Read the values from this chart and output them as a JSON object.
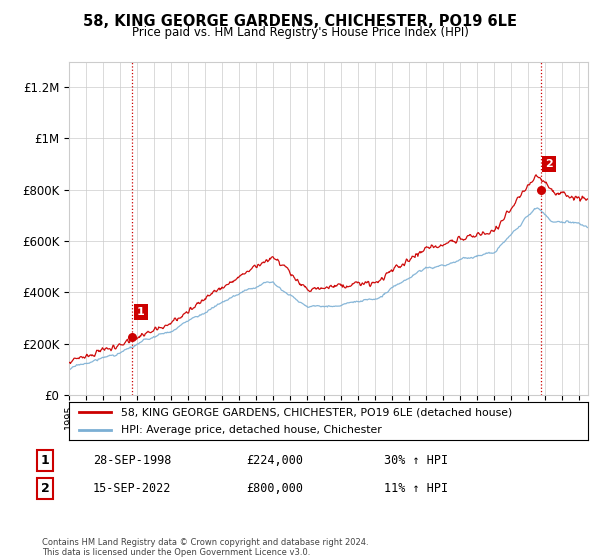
{
  "title": "58, KING GEORGE GARDENS, CHICHESTER, PO19 6LE",
  "subtitle": "Price paid vs. HM Land Registry's House Price Index (HPI)",
  "ylabel_ticks": [
    "£0",
    "£200K",
    "£400K",
    "£600K",
    "£800K",
    "£1M",
    "£1.2M"
  ],
  "ytick_values": [
    0,
    200000,
    400000,
    600000,
    800000,
    1000000,
    1200000
  ],
  "ylim": [
    0,
    1300000
  ],
  "xlim_start": 1995.0,
  "xlim_end": 2025.5,
  "sale1_year": 1998.73,
  "sale1_price": 224000,
  "sale1_label": "1",
  "sale1_date": "28-SEP-1998",
  "sale1_amount": "£224,000",
  "sale1_pct": "30% ↑ HPI",
  "sale2_year": 2022.71,
  "sale2_price": 800000,
  "sale2_label": "2",
  "sale2_date": "15-SEP-2022",
  "sale2_amount": "£800,000",
  "sale2_pct": "11% ↑ HPI",
  "red_line_color": "#cc0000",
  "blue_line_color": "#7bafd4",
  "marker_color": "#cc0000",
  "vline_color": "#cc0000",
  "grid_color": "#cccccc",
  "background_color": "#ffffff",
  "legend_label_red": "58, KING GEORGE GARDENS, CHICHESTER, PO19 6LE (detached house)",
  "legend_label_blue": "HPI: Average price, detached house, Chichester",
  "footer": "Contains HM Land Registry data © Crown copyright and database right 2024.\nThis data is licensed under the Open Government Licence v3.0."
}
